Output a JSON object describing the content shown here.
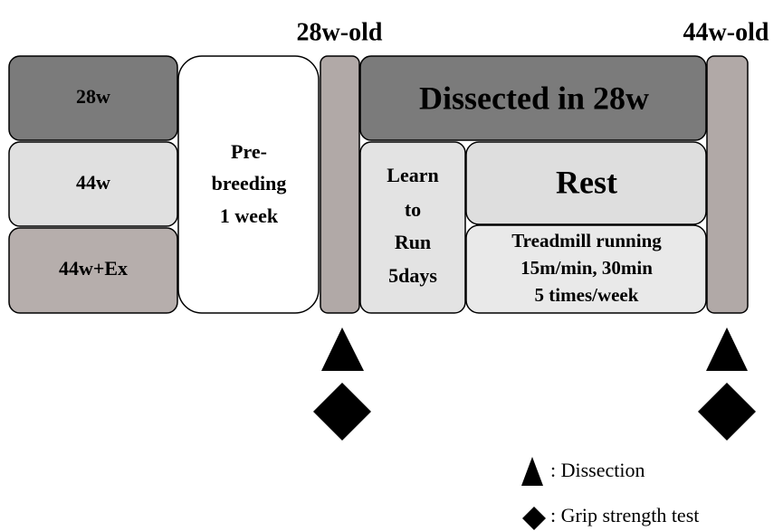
{
  "timepoints": [
    "28w-old",
    "44w-old"
  ],
  "groups": [
    "28w",
    "44w",
    "44w+Ex"
  ],
  "prebreeding": [
    "Pre-",
    "breeding",
    "1 week"
  ],
  "dissected": "Dissected in 28w",
  "learn": [
    "Learn",
    "to",
    "Run",
    "5days"
  ],
  "rest": "Rest",
  "treadmill": [
    "Treadmill running",
    "15m/min, 30min",
    "5 times/week"
  ],
  "legend": [
    ": Dissection",
    ": Grip strength test"
  ]
}
